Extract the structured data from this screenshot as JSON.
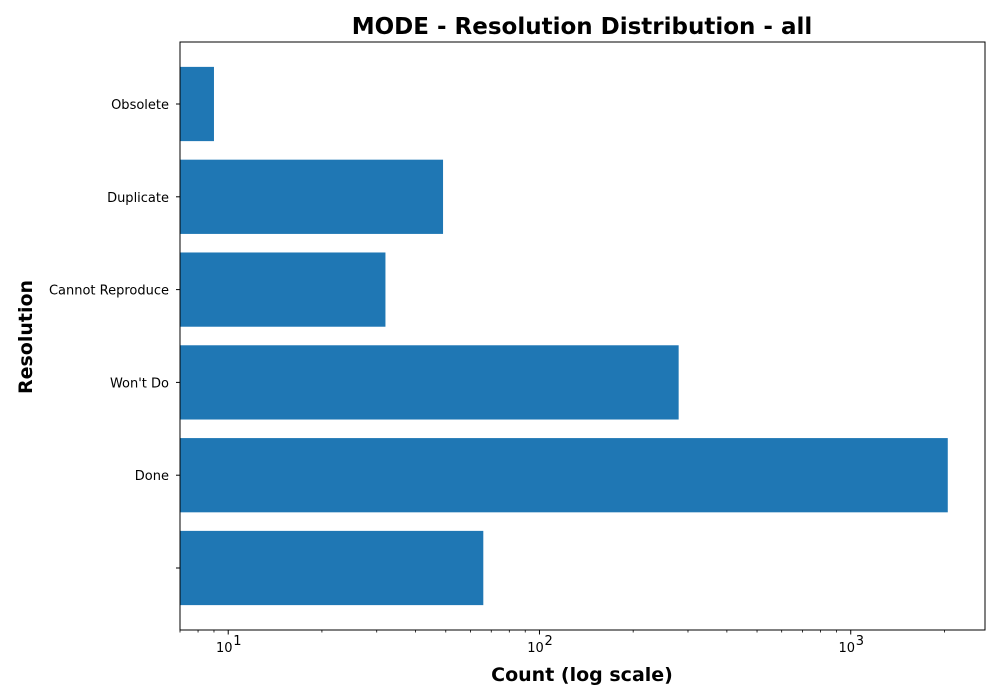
{
  "chart_data": {
    "type": "bar",
    "orientation": "horizontal",
    "title": "MODE - Resolution Distribution - all",
    "xlabel": "Count (log scale)",
    "ylabel": "Resolution",
    "x_scale": "log",
    "xlim": [
      7,
      2700
    ],
    "grid": false,
    "legend": "none",
    "bar_color": "#1f77b4",
    "categories": [
      "",
      "Done",
      "Won't Do",
      "Cannot Reproduce",
      "Duplicate",
      "Obsolete"
    ],
    "values": [
      66,
      2050,
      280,
      32,
      49,
      9
    ],
    "x_ticks": [
      {
        "value": 10,
        "base": "10",
        "exp": "1"
      },
      {
        "value": 100,
        "base": "10",
        "exp": "2"
      },
      {
        "value": 1000,
        "base": "10",
        "exp": "3"
      }
    ]
  }
}
